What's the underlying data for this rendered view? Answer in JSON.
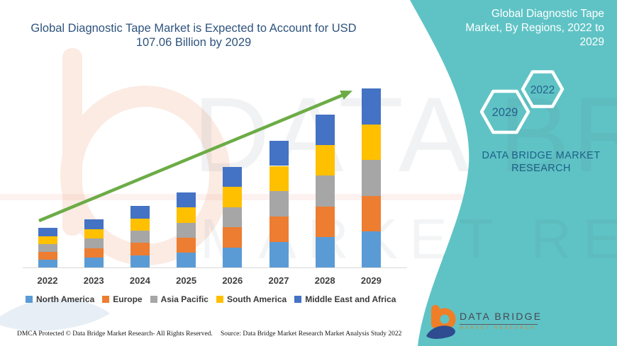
{
  "header": {
    "left_title": "Global Diagnostic Tape Market is Expected to Account for USD 107.06 Billion by 2029",
    "right_title": "Global Diagnostic Tape Market, By Regions, 2022 to 2029"
  },
  "side_panel": {
    "hexagons": [
      {
        "label": "2029"
      },
      {
        "label": "2022"
      }
    ],
    "brand_name": "DATA BRIDGE MARKET RESEARCH"
  },
  "logo": {
    "name": "DATA BRIDGE",
    "subtitle": "MARKET RESEARCH"
  },
  "footer": {
    "left": "DMCA Protected © Data Bridge Market Research- All Rights Reserved.",
    "right": "Source: Data Bridge Market Research Market Analysis Study 2022"
  },
  "watermark": {
    "row1": "DATA BRIDGE",
    "row2": "MARKET RESEARCH"
  },
  "colors": {
    "panel_teal": "#5FC3C5",
    "title_blue": "#2E537D",
    "hex_label_blue": "#27618C",
    "trend_green": "#6CAC46"
  },
  "chart_data": {
    "type": "bar",
    "stacked": true,
    "title": "Global Diagnostic Tape Market, By Regions, 2022 to 2029",
    "unit": "USD Billion",
    "x": [
      "2022",
      "2023",
      "2024",
      "2025",
      "2026",
      "2027",
      "2028",
      "2029"
    ],
    "totals": [
      23.5,
      28.8,
      36.7,
      44.7,
      60.1,
      75.9,
      91.4,
      107.06
    ],
    "series": [
      {
        "name": "North America",
        "color": "#5B9BD5",
        "values": [
          4.7,
          5.76,
          7.34,
          8.94,
          12.02,
          15.18,
          18.28,
          21.41
        ]
      },
      {
        "name": "Europe",
        "color": "#ED7D31",
        "values": [
          4.7,
          5.76,
          7.34,
          8.94,
          12.02,
          15.18,
          18.28,
          21.41
        ]
      },
      {
        "name": "Asia Pacific",
        "color": "#A6A6A6",
        "values": [
          4.7,
          5.76,
          7.34,
          8.94,
          12.02,
          15.18,
          18.28,
          21.41
        ]
      },
      {
        "name": "South America",
        "color": "#FFC000",
        "values": [
          4.7,
          5.76,
          7.34,
          8.94,
          12.02,
          15.18,
          18.28,
          21.41
        ]
      },
      {
        "name": "Middle East and Africa",
        "color": "#4472C4",
        "values": [
          4.7,
          5.76,
          7.34,
          8.94,
          12.02,
          15.18,
          18.28,
          21.41
        ]
      }
    ],
    "trendline": {
      "from": "2022",
      "to": "2029",
      "color": "#6CAC46"
    },
    "ylim": [
      0,
      110
    ],
    "grid": false,
    "legend_position": "bottom"
  }
}
